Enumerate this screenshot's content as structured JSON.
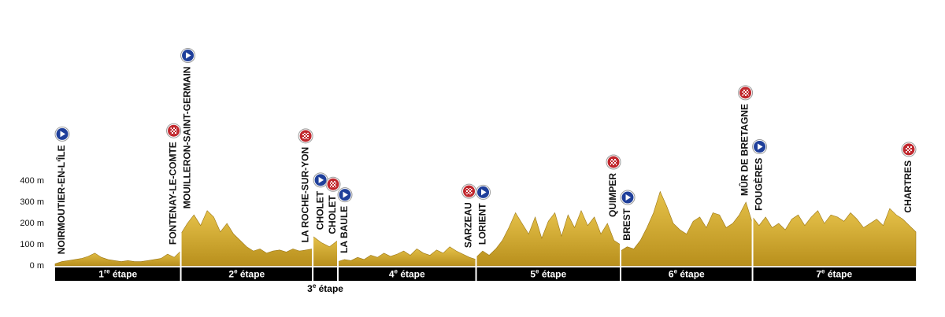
{
  "chart_data": {
    "type": "area",
    "color": "#d4ab2c",
    "ylim": [
      0,
      400
    ],
    "yticks": [
      {
        "value": 0,
        "label": "0 m"
      },
      {
        "value": 100,
        "label": "100 m"
      },
      {
        "value": 200,
        "label": "200 m"
      },
      {
        "value": 300,
        "label": "300 m"
      },
      {
        "value": 400,
        "label": "400 m"
      }
    ],
    "stages": [
      {
        "number": "1",
        "suffix": "re",
        "label": "étape",
        "start": "NOIRMOUTIER-EN-L'ÎLE",
        "finish": "FONTENAY-LE-COMTE",
        "values": [
          10,
          20,
          25,
          30,
          35,
          45,
          60,
          40,
          30,
          25,
          20,
          25,
          20,
          20,
          25,
          30,
          35,
          55,
          40,
          70
        ]
      },
      {
        "number": "2",
        "suffix": "e",
        "label": "étape",
        "start": "MOUILLERON-SAINT-GERMAIN",
        "finish": "LA ROCHE-SUR-YON",
        "values": [
          150,
          200,
          240,
          190,
          260,
          230,
          160,
          200,
          150,
          120,
          90,
          70,
          80,
          60,
          70,
          75,
          65,
          80,
          70,
          75,
          80
        ]
      },
      {
        "number": "3",
        "suffix": "e",
        "label": "étape",
        "start": "CHOLET",
        "finish": "CHOLET",
        "values": [
          140,
          110,
          90,
          120
        ]
      },
      {
        "number": "4",
        "suffix": "e",
        "label": "étape",
        "start": "LA BAULE",
        "finish": "SARZEAU",
        "values": [
          20,
          30,
          25,
          40,
          30,
          50,
          40,
          60,
          45,
          55,
          70,
          50,
          80,
          60,
          50,
          75,
          60,
          90,
          70,
          55,
          40,
          30
        ]
      },
      {
        "number": "5",
        "suffix": "e",
        "label": "étape",
        "start": "LORIENT",
        "finish": "QUIMPER",
        "values": [
          40,
          70,
          50,
          80,
          120,
          180,
          250,
          200,
          150,
          230,
          130,
          210,
          250,
          140,
          240,
          180,
          260,
          190,
          230,
          150,
          200,
          120,
          100
        ]
      },
      {
        "number": "6",
        "suffix": "e",
        "label": "étape",
        "start": "BREST",
        "finish": "MÛR DE BRETAGNE",
        "values": [
          70,
          90,
          80,
          120,
          180,
          250,
          350,
          280,
          200,
          170,
          150,
          210,
          230,
          180,
          250,
          240,
          180,
          200,
          240,
          300,
          200
        ]
      },
      {
        "number": "7",
        "suffix": "e",
        "label": "étape",
        "start": "FOUGÈRES",
        "finish": "CHARTRES",
        "values": [
          230,
          190,
          230,
          180,
          200,
          170,
          220,
          240,
          190,
          230,
          260,
          200,
          240,
          230,
          210,
          250,
          220,
          180,
          200,
          220,
          190,
          270,
          240,
          220,
          190,
          160
        ]
      }
    ]
  }
}
